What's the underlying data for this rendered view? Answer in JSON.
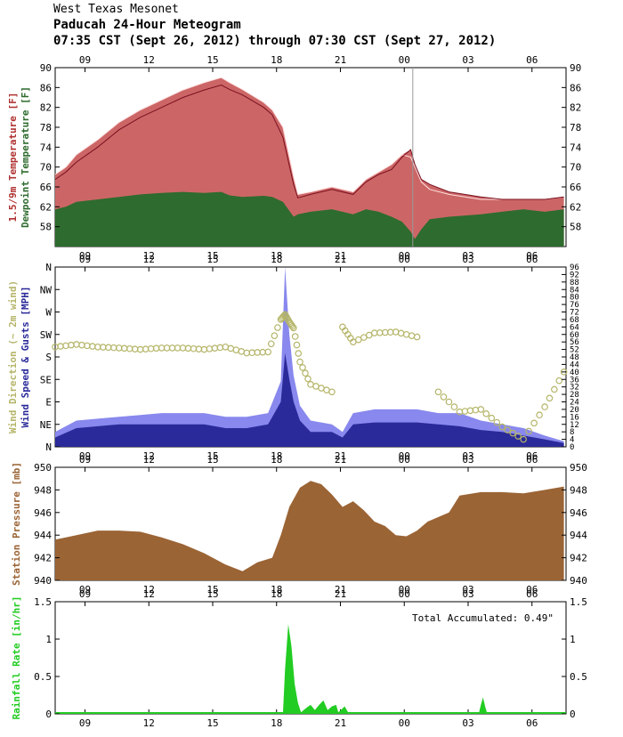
{
  "header": {
    "org": "West Texas Mesonet",
    "title": "Paducah 24-Hour Meteogram",
    "range": "07:35 CST (Sept 26, 2012) through 07:30 CST (Sept 27, 2012)"
  },
  "time_ticks": [
    "09",
    "12",
    "15",
    "18",
    "21",
    "00",
    "03",
    "06"
  ],
  "colors": {
    "temp_fill": "#cc6666",
    "temp_line": "#7a1020",
    "temp_15": "#ffe0e0",
    "dewpoint": "#2e6b2e",
    "gust_fill": "#8888ee",
    "speed_fill": "#2a2a9a",
    "direction": "#b5b56a",
    "pressure": "#9b6435",
    "rain": "#22cc22",
    "axis_grid": "#bdbdbd"
  },
  "chart_data": [
    {
      "type": "area",
      "panel": "temperature",
      "ylabel_parts": [
        "1.5/9m Temperature [F]",
        "Dewpoint Temperature [F]"
      ],
      "ylim": [
        54,
        90
      ],
      "yticks": [
        90,
        86,
        82,
        78,
        74,
        70,
        66,
        62,
        58
      ],
      "x_hours": [
        0,
        0.5,
        1,
        2,
        3,
        4,
        5,
        6,
        7,
        7.8,
        8.2,
        8.8,
        9.8,
        10.2,
        10.7,
        11.2,
        11.4,
        12,
        13,
        14,
        14.6,
        15.2,
        15.8,
        16.3,
        16.7,
        16.9,
        17.2,
        17.6,
        18.5,
        20,
        21,
        22,
        23,
        23.9
      ],
      "series": [
        {
          "name": "9m Temperature",
          "values": [
            67.5,
            69,
            71,
            74,
            77.5,
            80,
            82,
            84,
            85.5,
            86.5,
            85.6,
            84.5,
            82,
            80.5,
            76,
            66.5,
            63.8,
            64.5,
            65.5,
            64.5,
            67,
            68.5,
            69.5,
            72,
            73.5,
            70.5,
            67.5,
            66.5,
            65,
            64,
            63.5,
            63.5,
            63.5,
            64
          ]
        },
        {
          "name": "1.5m Temperature",
          "values": [
            68.5,
            70,
            72.5,
            75.5,
            79,
            81.5,
            83.5,
            85.5,
            87,
            88,
            87,
            85.6,
            83,
            81.5,
            78,
            68,
            64.5,
            65,
            66,
            65,
            67.5,
            69,
            70.5,
            72.5,
            72,
            70,
            67,
            65.5,
            64.5,
            63.5,
            63.5,
            63.5,
            63.5,
            64
          ]
        },
        {
          "name": "Dewpoint",
          "values": [
            61.5,
            62,
            63,
            63.5,
            64,
            64.5,
            64.8,
            65,
            64.8,
            65,
            64.3,
            64,
            64.2,
            64,
            63,
            60,
            60.5,
            61,
            61.5,
            60.5,
            61.5,
            61,
            60,
            59,
            57,
            55.5,
            57.5,
            59.5,
            60,
            60.5,
            61,
            61.5,
            61,
            61.5
          ]
        }
      ]
    },
    {
      "type": "area",
      "panel": "wind",
      "ylabel_parts": [
        "Wind Direction (~ 2m wind)",
        "Wind Speed & Gusts [MPH]"
      ],
      "ylim": [
        0,
        96
      ],
      "yticks_right": [
        96,
        92,
        88,
        84,
        80,
        76,
        72,
        68,
        64,
        60,
        56,
        52,
        48,
        44,
        40,
        36,
        32,
        28,
        24,
        20,
        16,
        12,
        8,
        4,
        0
      ],
      "direction_labels": [
        "N",
        "NW",
        "W",
        "SW",
        "S",
        "SE",
        "E",
        "NE",
        "N"
      ],
      "x_hours": [
        0,
        1,
        2,
        3,
        4,
        5,
        6,
        7,
        8,
        9,
        10,
        10.6,
        10.8,
        11,
        11.2,
        11.5,
        12,
        13,
        13.5,
        14,
        15,
        16,
        17,
        18,
        19,
        20,
        21,
        22,
        23,
        23.9
      ],
      "series": [
        {
          "name": "Gusts",
          "values": [
            8,
            14,
            15,
            16,
            17,
            18,
            18,
            18,
            16,
            16,
            18,
            35,
            96,
            60,
            38,
            22,
            14,
            12,
            8,
            18,
            20,
            20,
            20,
            18,
            18,
            14,
            12,
            10,
            6,
            3
          ]
        },
        {
          "name": "Wind Speed",
          "values": [
            5,
            10,
            11,
            12,
            12,
            12,
            12,
            12,
            10,
            10,
            12,
            24,
            50,
            36,
            24,
            14,
            8,
            8,
            5,
            12,
            13,
            13,
            13,
            12,
            11,
            9,
            8,
            6,
            4,
            2
          ]
        },
        {
          "name": "Wind Direction",
          "values_degrees": [
            200,
            205,
            200,
            198,
            195,
            198,
            198,
            195,
            200,
            188,
            190,
            255,
            265,
            250,
            238,
            170,
            125,
            110,
            240,
            210,
            228,
            230,
            220,
            110,
            70,
            75,
            40,
            15,
            80,
            150
          ]
        }
      ]
    },
    {
      "type": "area",
      "panel": "pressure",
      "ylabel": "Station Pressure [mb]",
      "ylim": [
        940,
        950
      ],
      "yticks": [
        950,
        948,
        946,
        944,
        942,
        940
      ],
      "x_hours": [
        0,
        1,
        2,
        3,
        4,
        5,
        6,
        7,
        8,
        8.8,
        9.5,
        10.2,
        10.6,
        11,
        11.5,
        12,
        12.5,
        13,
        13.5,
        14,
        14.5,
        15,
        15.5,
        16,
        16.5,
        17,
        17.5,
        18,
        18.5,
        19,
        20,
        21,
        22,
        23,
        23.9
      ],
      "values": [
        943.6,
        944.0,
        944.4,
        944.4,
        944.3,
        943.8,
        943.2,
        942.4,
        941.4,
        940.8,
        941.6,
        942.0,
        944.0,
        946.5,
        948.2,
        948.8,
        948.5,
        947.6,
        946.5,
        947.0,
        946.2,
        945.2,
        944.8,
        944.0,
        943.9,
        944.4,
        945.2,
        945.6,
        946.0,
        947.5,
        947.8,
        947.8,
        947.7,
        948.0,
        948.3
      ]
    },
    {
      "type": "area",
      "panel": "rainfall",
      "ylabel": "Rainfall Rate [in/hr]",
      "ylim": [
        0,
        1.5
      ],
      "yticks": [
        1.5,
        1,
        0.5,
        0
      ],
      "annotation": "Total Accumulated: 0.49\"",
      "x_hours": [
        0,
        10.7,
        10.8,
        10.95,
        11.1,
        11.25,
        11.4,
        11.55,
        11.8,
        12.0,
        12.2,
        12.4,
        12.6,
        12.8,
        13.0,
        13.2,
        13.3,
        13.6,
        13.8,
        19.9,
        20.0,
        20.1,
        20.2,
        20.3,
        23.9
      ],
      "values": [
        0,
        0,
        0.6,
        1.2,
        0.9,
        0.4,
        0.15,
        0.02,
        0.08,
        0.12,
        0.05,
        0.12,
        0.18,
        0.05,
        0.1,
        0.12,
        0.02,
        0.1,
        0,
        0,
        0.12,
        0.22,
        0.1,
        0,
        0
      ]
    }
  ]
}
